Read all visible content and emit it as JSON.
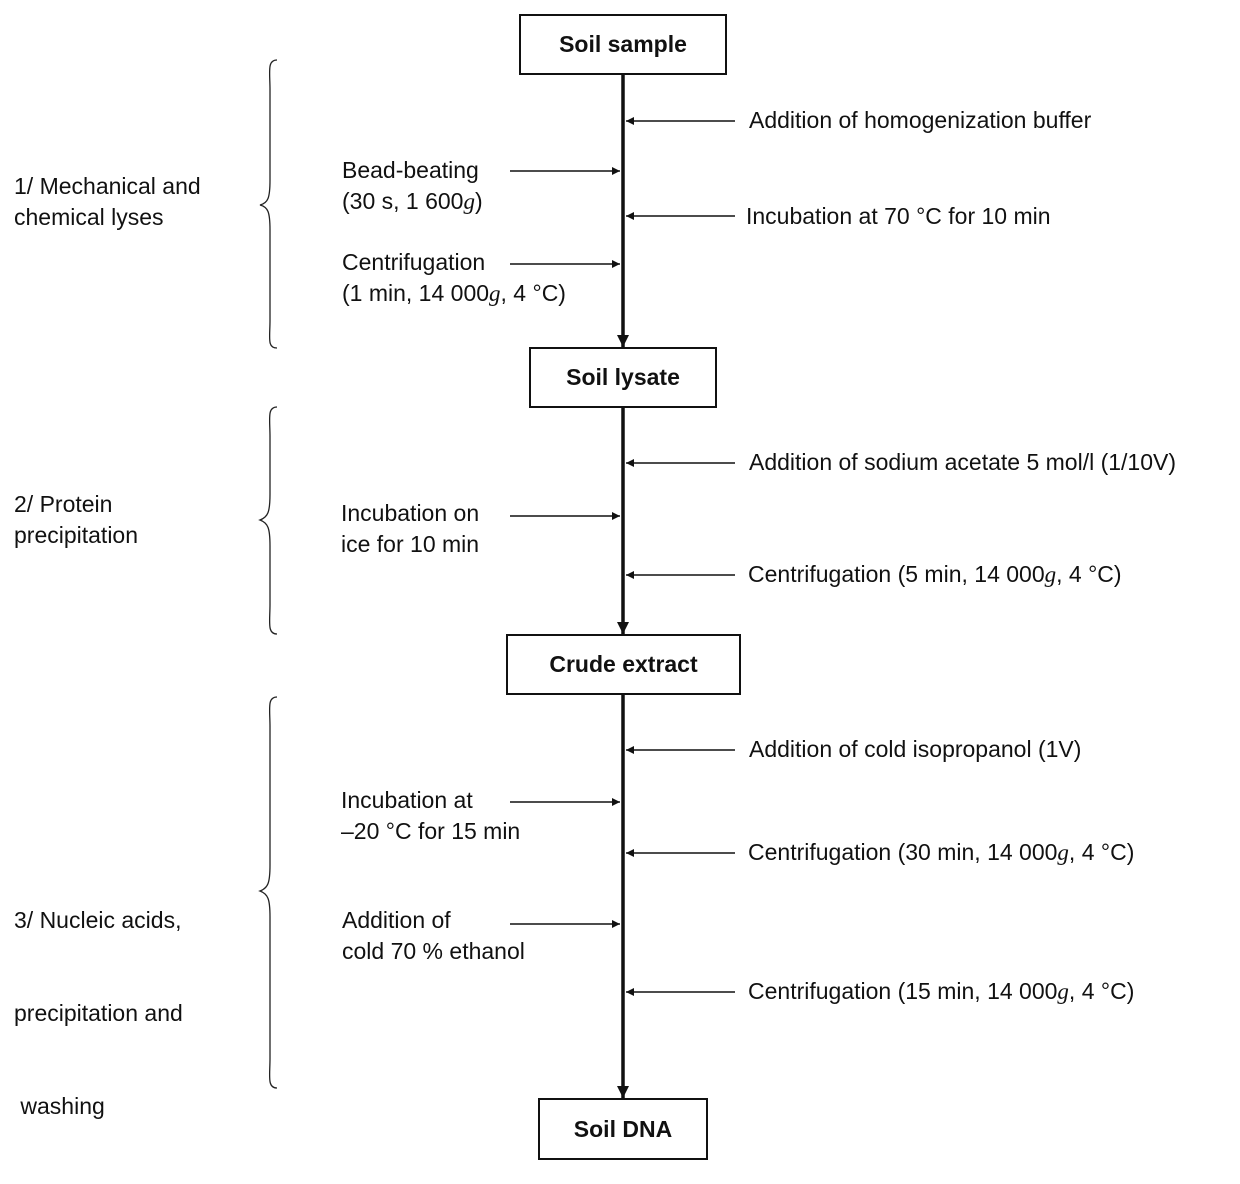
{
  "nodes": {
    "soil_sample": "Soil sample",
    "soil_lysate": "Soil lysate",
    "crude_extract": "Crude extract",
    "soil_dna": "Soil DNA"
  },
  "phases": {
    "p1": [
      "1/ Mechanical and",
      "chemical lyses"
    ],
    "p2": [
      "2/ Protein",
      "precipitation"
    ],
    "p3": [
      "3/ Nucleic acids,",
      "precipitation and",
      " washing"
    ]
  },
  "steps": {
    "s1": "Addition of homogenization buffer",
    "s2": [
      "Bead-beating",
      "(30 s, 1 600",
      "g",
      ")"
    ],
    "s3": "Incubation at 70 °C for 10 min",
    "s4": [
      "Centrifugation",
      "(1 min, 14 000",
      "g",
      ", 4 °C)"
    ],
    "s5": "Addition of sodium acetate 5 mol/l (1/10V)",
    "s6": [
      "Incubation on",
      "ice for 10 min"
    ],
    "s7": [
      "Centrifugation (5 min, 14 000",
      "g",
      ", 4 °C)"
    ],
    "s8": "Addition of cold isopropanol (1V)",
    "s9": [
      "Incubation at",
      "–20 °C for 15 min"
    ],
    "s10": [
      "Centrifugation (30 min, 14 000",
      "g",
      ", 4 °C)"
    ],
    "s11": [
      "Addition of",
      "cold 70 % ethanol"
    ],
    "s12": [
      "Centrifugation (15 min, 14 000",
      "g",
      ", 4 °C)"
    ]
  }
}
